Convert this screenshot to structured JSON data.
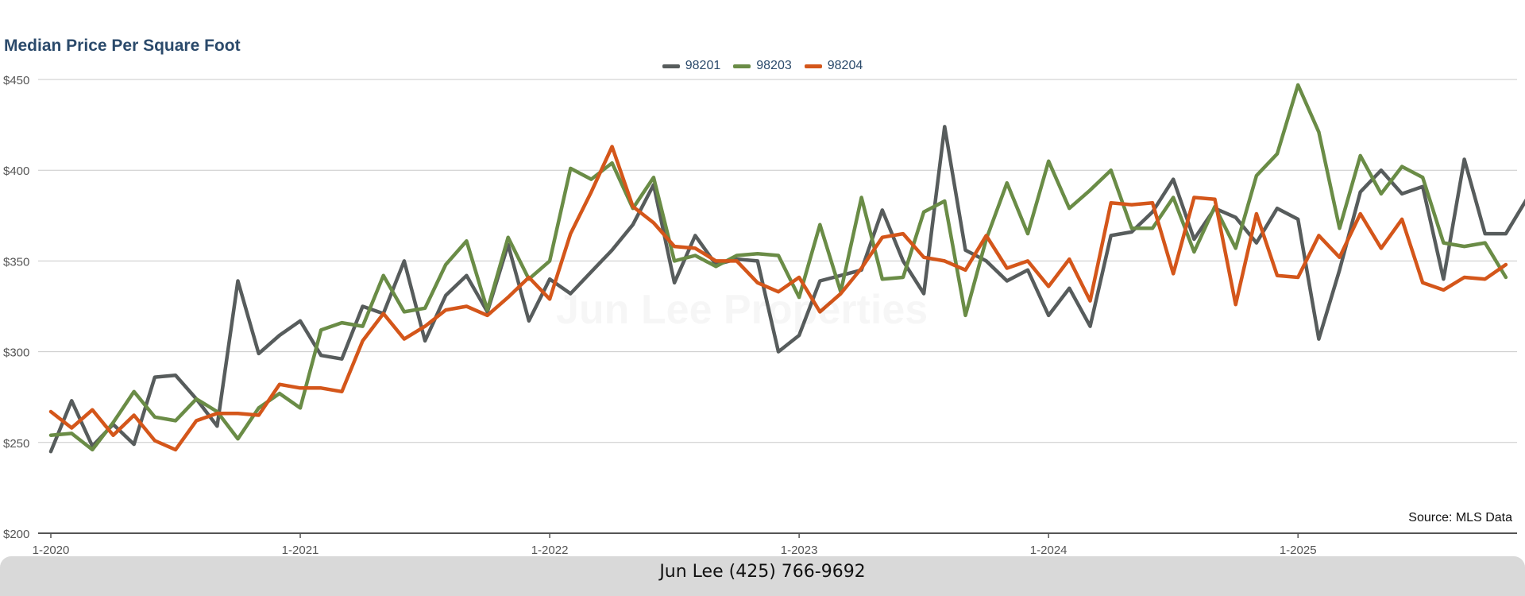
{
  "chart_data": {
    "type": "line",
    "title": "Median Price Per Square Foot",
    "xlabel": "",
    "ylabel": "",
    "ylim": [
      200,
      450
    ],
    "y_ticks": [
      200,
      250,
      300,
      350,
      400,
      450
    ],
    "y_tick_labels": [
      "$200",
      "$250",
      "$300",
      "$350",
      "$400",
      "$450"
    ],
    "x_tick_labels": [
      "1-2020",
      "1-2021",
      "1-2022",
      "1-2023",
      "1-2024",
      "1-2025"
    ],
    "x_start": "2020-01",
    "grid": true,
    "legend_position": "top-center",
    "source": "Source: MLS Data",
    "watermark": "Jun Lee Properties",
    "series": [
      {
        "name": "98201",
        "color": "#575c5c",
        "values": [
          245,
          273,
          248,
          260,
          249,
          286,
          287,
          274,
          259,
          339,
          299,
          309,
          317,
          298,
          296,
          325,
          321,
          350,
          306,
          331,
          342,
          322,
          359,
          317,
          340,
          332,
          344,
          356,
          370,
          392,
          338,
          364,
          348,
          351,
          350,
          300,
          309,
          339,
          342,
          345,
          378,
          350,
          332,
          424,
          356,
          350,
          339,
          345,
          320,
          335,
          314,
          364,
          366,
          377,
          395,
          362,
          379,
          374,
          360,
          379,
          373,
          307,
          345,
          388,
          400,
          387,
          391,
          340,
          406,
          365,
          365,
          384
        ]
      },
      {
        "name": "98203",
        "color": "#6a8c46",
        "values": [
          254,
          255,
          246,
          261,
          278,
          264,
          262,
          274,
          267,
          252,
          269,
          277,
          269,
          312,
          316,
          314,
          342,
          322,
          324,
          348,
          361,
          323,
          363,
          340,
          350,
          401,
          395,
          404,
          379,
          396,
          350,
          353,
          347,
          353,
          354,
          353,
          330,
          370,
          333,
          385,
          340,
          341,
          377,
          383,
          320,
          362,
          393,
          365,
          405,
          379,
          389,
          400,
          368,
          368,
          385,
          355,
          380,
          357,
          397,
          409,
          447,
          421,
          368,
          408,
          387,
          402,
          396,
          360,
          358,
          360,
          341
        ]
      },
      {
        "name": "98204",
        "color": "#d4561a",
        "values": [
          267,
          258,
          268,
          254,
          265,
          251,
          246,
          262,
          266,
          266,
          265,
          282,
          280,
          280,
          278,
          306,
          321,
          307,
          314,
          323,
          325,
          320,
          330,
          341,
          329,
          365,
          388,
          413,
          380,
          371,
          358,
          357,
          350,
          350,
          338,
          333,
          341,
          322,
          332,
          346,
          363,
          365,
          352,
          350,
          345,
          364,
          346,
          350,
          336,
          351,
          328,
          382,
          381,
          382,
          343,
          385,
          384,
          326,
          376,
          342,
          341,
          364,
          352,
          376,
          357,
          373,
          338,
          334,
          341,
          340,
          348
        ]
      }
    ]
  },
  "footer": {
    "contact": "Jun Lee (425) 766-9692"
  }
}
